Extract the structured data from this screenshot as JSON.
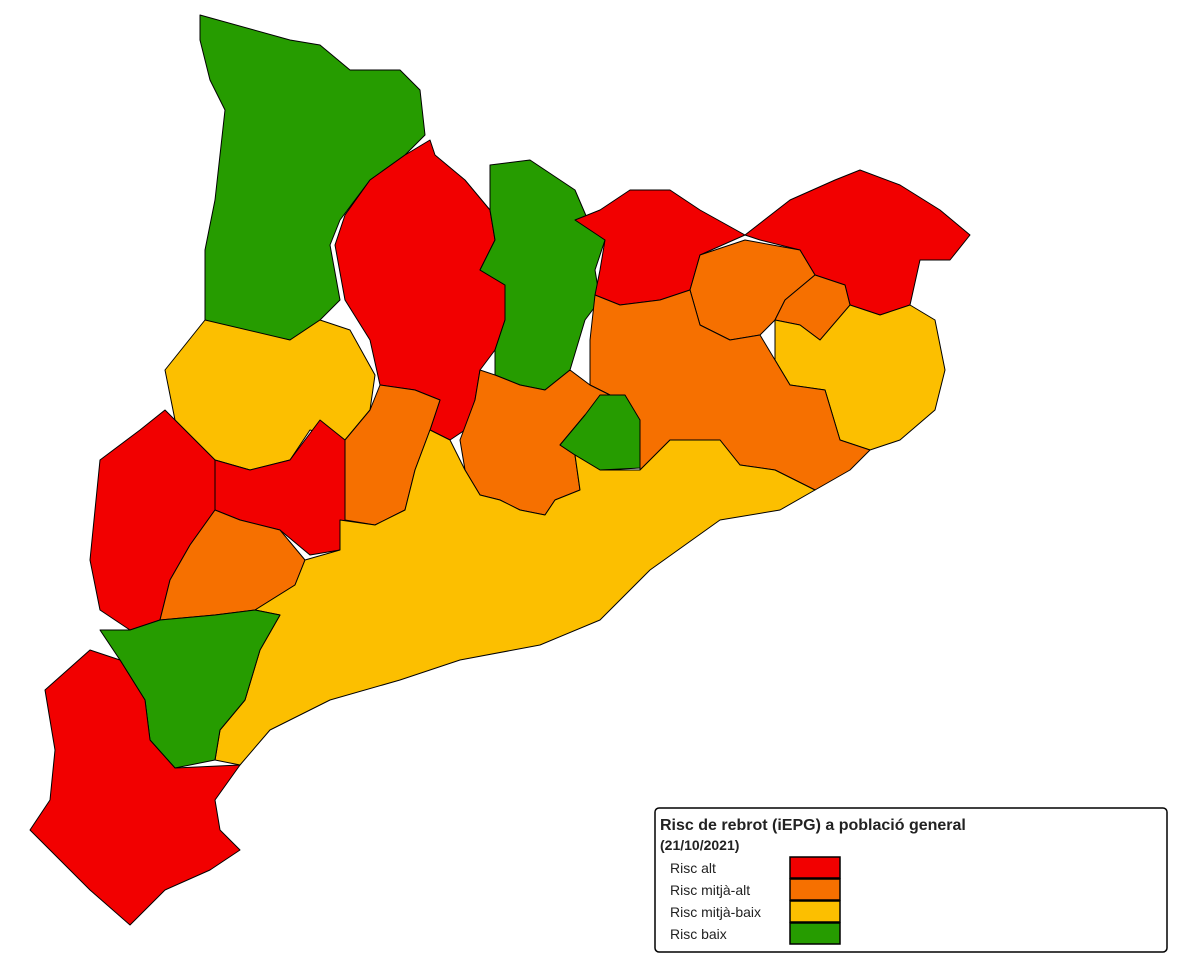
{
  "legend": {
    "title": "Risc de rebrot (iEPG) a població general",
    "subtitle": "(21/10/2021)",
    "items": [
      {
        "label": "Risc alt",
        "color": "#f20000"
      },
      {
        "label": "Risc mitjà-alt",
        "color": "#f67000"
      },
      {
        "label": "Risc mitjà-baix",
        "color": "#fcbf00"
      },
      {
        "label": "Risc baix",
        "color": "#269c00"
      }
    ]
  }
}
